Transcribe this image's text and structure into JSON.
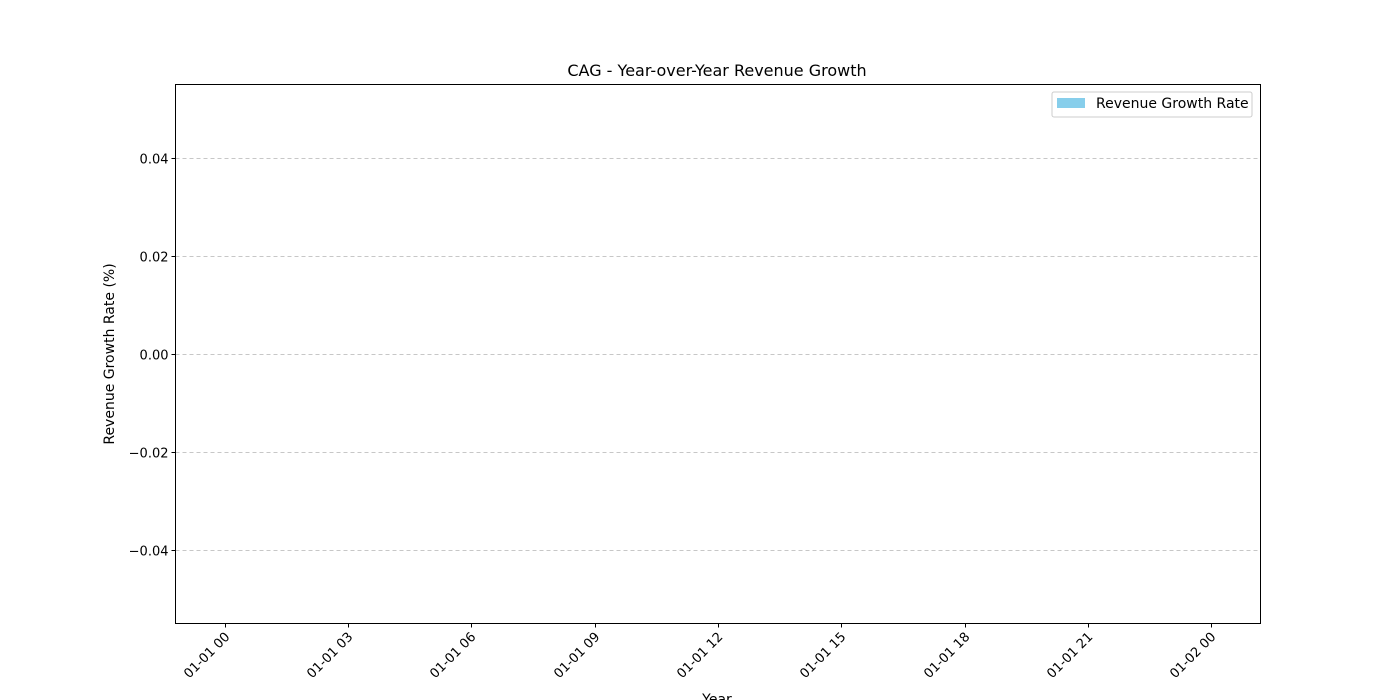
{
  "chart_data": {
    "type": "bar",
    "title": "CAG - Year-over-Year Revenue Growth",
    "xlabel": "Year",
    "ylabel": "Revenue Growth Rate (%)",
    "x_ticks": [
      "01-01 00",
      "01-01 03",
      "01-01 06",
      "01-01 09",
      "01-01 12",
      "01-01 15",
      "01-01 18",
      "01-01 21",
      "01-02 00"
    ],
    "y_ticks": [
      "0.04",
      "0.02",
      "0.00",
      "−0.02",
      "−0.04"
    ],
    "y_tick_values": [
      0.04,
      0.02,
      0.0,
      -0.02,
      -0.04
    ],
    "ylim": [
      -0.055,
      0.055
    ],
    "xlim_hours": [
      -1.2,
      25.2
    ],
    "x_tick_hours": [
      0,
      3,
      6,
      9,
      12,
      15,
      18,
      21,
      24
    ],
    "grid": "y-dashed",
    "legend_position": "top-right",
    "series": [
      {
        "name": "Revenue Growth Rate",
        "color": "#87ceeb",
        "values": []
      }
    ]
  }
}
